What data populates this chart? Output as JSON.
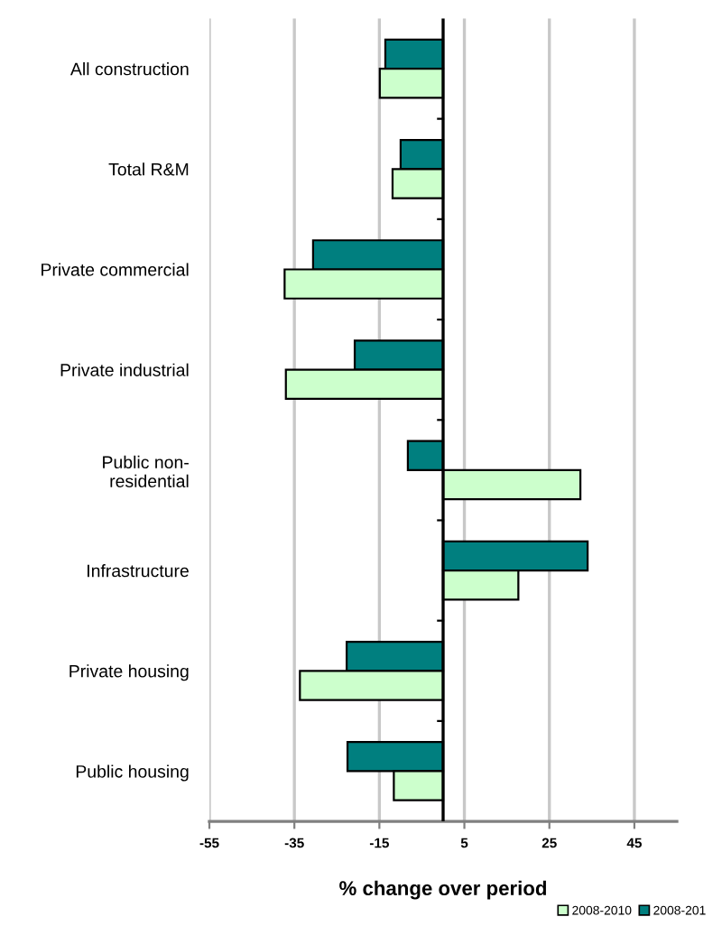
{
  "chart_data": {
    "type": "bar",
    "orientation": "horizontal",
    "categories": [
      "All construction",
      "Total R&M",
      "Private commercial",
      "Private industrial",
      "Public non-\nresidential",
      "Infrastructure",
      "Private housing",
      "Public housing"
    ],
    "series": [
      {
        "name": "2008-201",
        "color": "#007f7f",
        "values": [
          -13.6,
          -10.0,
          -30.6,
          -20.8,
          -8.3,
          34.0,
          -22.7,
          -22.5
        ]
      },
      {
        "name": "2008-2010",
        "color": "#ccffcc",
        "values": [
          -14.9,
          -11.9,
          -37.3,
          -37.0,
          32.3,
          17.7,
          -33.7,
          -11.6
        ]
      }
    ],
    "xlabel": "% change over period",
    "xlim": [
      -55,
      55
    ],
    "xticks": [
      -55,
      -35,
      -15,
      5,
      25,
      45
    ],
    "grid": "x",
    "legend": "bottom right"
  }
}
